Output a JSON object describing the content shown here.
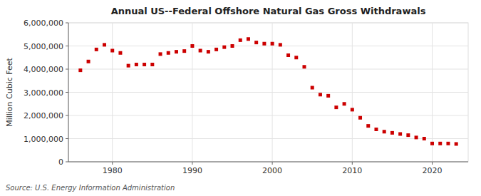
{
  "chart_data": {
    "type": "scatter",
    "title": "Annual US--Federal Offshore Natural Gas Gross Withdrawals",
    "y_label": "Million Cubic Feet",
    "annotations": [
      "Source: U.S. Energy Information Administration"
    ],
    "x": [
      1976,
      1977,
      1978,
      1979,
      1980,
      1981,
      1982,
      1983,
      1984,
      1985,
      1986,
      1987,
      1988,
      1989,
      1990,
      1991,
      1992,
      1993,
      1994,
      1995,
      1996,
      1997,
      1998,
      1999,
      2000,
      2001,
      2002,
      2003,
      2004,
      2005,
      2006,
      2007,
      2008,
      2009,
      2010,
      2011,
      2012,
      2013,
      2014,
      2015,
      2016,
      2017,
      2018,
      2019,
      2020,
      2021,
      2022,
      2023
    ],
    "values": [
      3950000,
      4330000,
      4850000,
      5050000,
      4800000,
      4700000,
      4150000,
      4200000,
      4200000,
      4200000,
      4650000,
      4700000,
      4750000,
      4780000,
      5000000,
      4800000,
      4750000,
      4850000,
      4950000,
      5000000,
      5250000,
      5300000,
      5150000,
      5100000,
      5100000,
      5050000,
      4600000,
      4500000,
      4100000,
      3200000,
      2900000,
      2850000,
      2350000,
      2500000,
      2250000,
      1900000,
      1550000,
      1400000,
      1300000,
      1250000,
      1200000,
      1150000,
      1050000,
      1000000,
      790000,
      790000,
      790000,
      770000
    ],
    "color": "#cc0000",
    "marker": "square",
    "xlim": [
      1974.5,
      2024.5
    ],
    "xticks": [
      1980,
      1990,
      2000,
      2010,
      2020
    ],
    "ylim": [
      0,
      6000000
    ],
    "yticks": [
      0,
      {
        "value": 1000000,
        "label": "1,000,000"
      },
      {
        "value": 2000000,
        "label": "2,000,000"
      },
      {
        "value": 3000000,
        "label": "3,000,000"
      },
      {
        "value": 4000000,
        "label": "4,000,000"
      },
      {
        "value": 5000000,
        "label": "5,000,000"
      },
      {
        "value": 6000000,
        "label": "6,000,000"
      }
    ],
    "grid": true
  }
}
